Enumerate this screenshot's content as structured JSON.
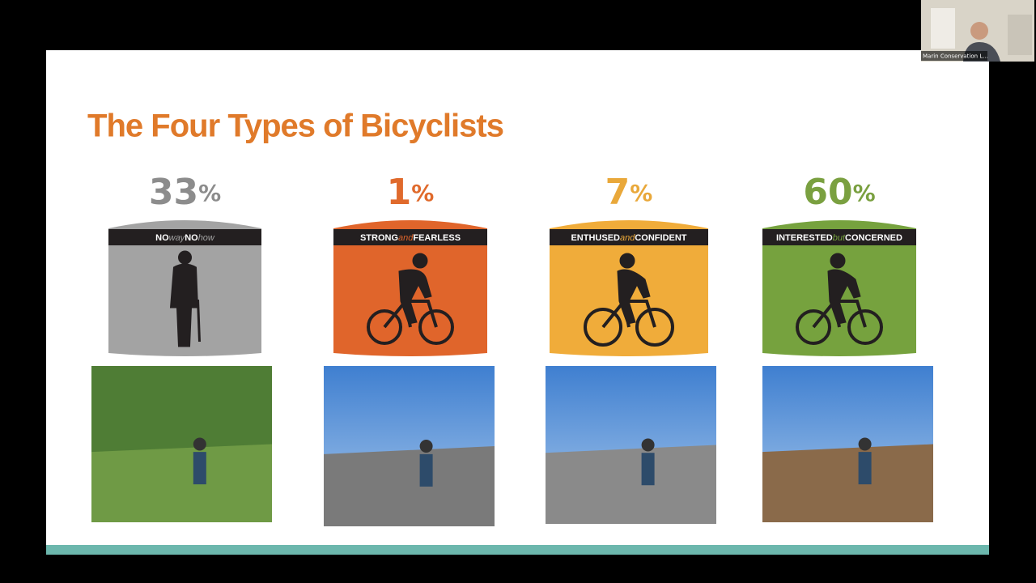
{
  "slide": {
    "title": "The Four Types  of Bicyclists",
    "types": [
      {
        "percent": "33",
        "unit": "%",
        "label_parts": [
          "NO",
          "way",
          "NO",
          "how"
        ]
      },
      {
        "percent": "1",
        "unit": "%",
        "label_parts": [
          "STRONG",
          "and",
          "FEARLESS"
        ]
      },
      {
        "percent": "7",
        "unit": "%",
        "label_parts": [
          "ENTHUSED",
          "and",
          "CONFIDENT"
        ]
      },
      {
        "percent": "60",
        "unit": "%",
        "label_parts": [
          "INTERESTED",
          "but",
          "CONCERNED"
        ]
      }
    ]
  },
  "participant": {
    "name": "Marin Conservation L..."
  }
}
